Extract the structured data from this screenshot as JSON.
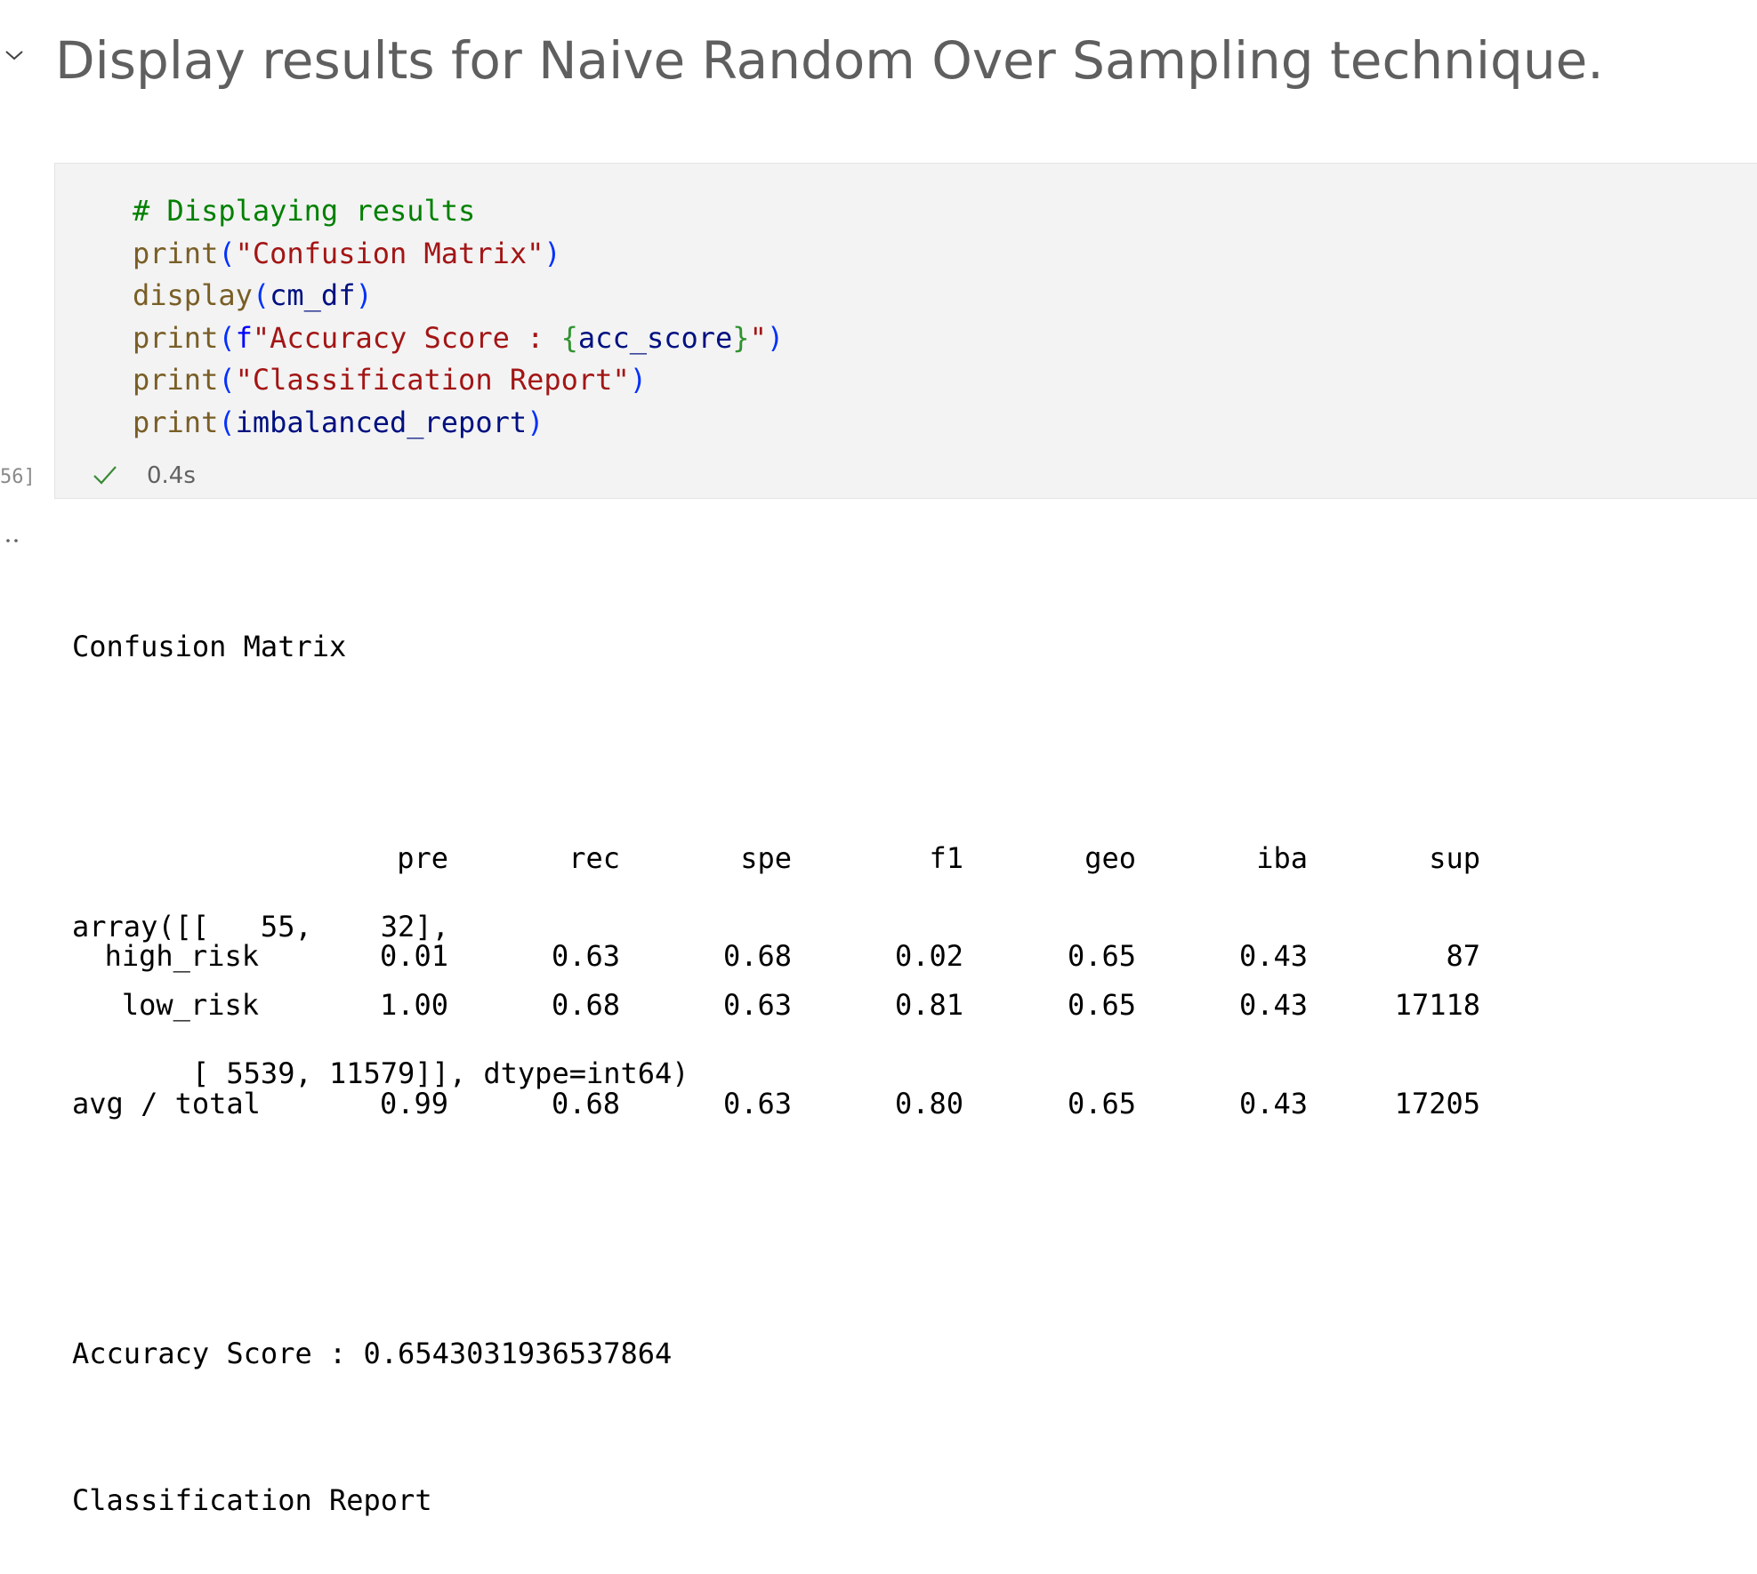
{
  "markdown_cell": {
    "heading": "Display results for Naive Random Over Sampling technique."
  },
  "code_cell": {
    "lines": [
      [
        {
          "t": "comment",
          "v": "# Displaying results"
        }
      ],
      [
        {
          "t": "func",
          "v": "print"
        },
        {
          "t": "paren",
          "v": "("
        },
        {
          "t": "string",
          "v": "\"Confusion Matrix\""
        },
        {
          "t": "paren",
          "v": ")"
        }
      ],
      [
        {
          "t": "func",
          "v": "display"
        },
        {
          "t": "paren",
          "v": "("
        },
        {
          "t": "var",
          "v": "cm_df"
        },
        {
          "t": "paren",
          "v": ")"
        }
      ],
      [
        {
          "t": "func",
          "v": "print"
        },
        {
          "t": "paren",
          "v": "("
        },
        {
          "t": "fprefix",
          "v": "f"
        },
        {
          "t": "string",
          "v": "\"Accuracy Score : "
        },
        {
          "t": "brace",
          "v": "{"
        },
        {
          "t": "var",
          "v": "acc_score"
        },
        {
          "t": "brace",
          "v": "}"
        },
        {
          "t": "string",
          "v": "\""
        },
        {
          "t": "paren",
          "v": ")"
        }
      ],
      [
        {
          "t": "func",
          "v": "print"
        },
        {
          "t": "paren",
          "v": "("
        },
        {
          "t": "string",
          "v": "\"Classification Report\""
        },
        {
          "t": "paren",
          "v": ")"
        }
      ],
      [
        {
          "t": "func",
          "v": "print"
        },
        {
          "t": "paren",
          "v": "("
        },
        {
          "t": "var",
          "v": "imbalanced_report"
        },
        {
          "t": "paren",
          "v": ")"
        }
      ]
    ],
    "execution_count": "56]",
    "status_icon": "check-icon",
    "exec_time": "0.4s"
  },
  "output": {
    "gutter_icon": "ellipsis-icon",
    "confusion_title": "Confusion Matrix",
    "array_line_1": "array([[   55,    32],",
    "array_line_2": "       [ 5539, 11579]], dtype=int64)",
    "accuracy_line": "Accuracy Score : 0.6543031936537864",
    "report_title": "Classification Report",
    "report": {
      "columns": [
        "pre",
        "rec",
        "spe",
        "f1",
        "geo",
        "iba",
        "sup"
      ],
      "rows": [
        {
          "label": "high_risk",
          "values": [
            "0.01",
            "0.63",
            "0.68",
            "0.02",
            "0.65",
            "0.43",
            "87"
          ]
        },
        {
          "label": "low_risk",
          "values": [
            "1.00",
            "0.68",
            "0.63",
            "0.81",
            "0.65",
            "0.43",
            "17118"
          ]
        }
      ],
      "total": {
        "label": "avg / total",
        "values": [
          "0.99",
          "0.68",
          "0.63",
          "0.80",
          "0.65",
          "0.43",
          "17205"
        ]
      }
    }
  },
  "colors": {
    "comment": "#008000",
    "function": "#795e26",
    "paren": "#0431fa",
    "string": "#a31515",
    "variable": "#001080",
    "cell_bg": "#f3f3f3",
    "success": "#388a34"
  }
}
